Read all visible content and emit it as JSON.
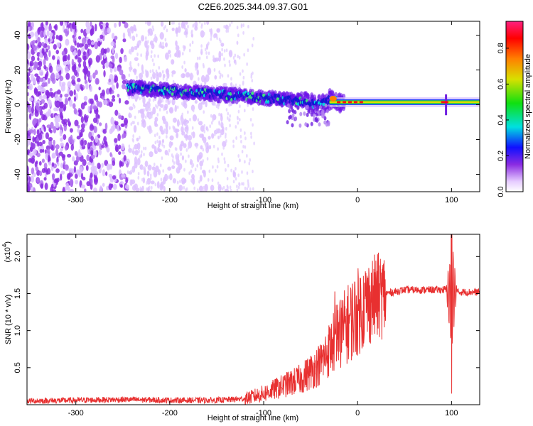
{
  "title": "C2E6.2025.344.09.37.G01",
  "chart_data": [
    {
      "type": "heatmap",
      "name": "spectrogram",
      "xlabel": "Height of straight line (km)",
      "ylabel": "Frequency (Hz)",
      "xlim": [
        -352,
        130
      ],
      "ylim": [
        -50,
        48
      ],
      "xticks": [
        -300,
        -200,
        -100,
        0,
        100
      ],
      "yticks": [
        -40,
        -20,
        0,
        20,
        40
      ],
      "xtick_labels": [
        "-300",
        "-200",
        "-100",
        "0",
        "100"
      ],
      "ytick_labels": [
        "-40",
        "-20",
        "0",
        "20",
        "40"
      ],
      "ridge": {
        "description_points_x": [
          -245,
          -200,
          -150,
          -100,
          -60,
          -40,
          -30,
          -20,
          0,
          50,
          100,
          130
        ],
        "description_points_y": [
          10,
          8,
          6,
          4,
          2,
          0,
          3,
          1.5,
          1.5,
          1.5,
          1.5,
          1.5
        ]
      },
      "colorbar": {
        "label": "Normalized spectral amplitude",
        "range": [
          0.0,
          0.95
        ],
        "ticks": [
          0.0,
          0.2,
          0.4,
          0.6,
          0.8
        ],
        "tick_labels": [
          "0.0",
          "0.2",
          "0.4",
          "0.6",
          "0.8"
        ]
      }
    },
    {
      "type": "line",
      "name": "snr",
      "xlabel": "Height of straight line (km)",
      "ylabel": "SNR (10 * v/v)",
      "scale_label": "(x10",
      "scale_exp": "4",
      "scale_close": ")",
      "xlim": [
        -352,
        130
      ],
      "ylim": [
        0,
        2.3
      ],
      "xticks": [
        -300,
        -200,
        -100,
        0,
        100
      ],
      "yticks": [
        0.5,
        1.0,
        1.5,
        2.0
      ],
      "xtick_labels": [
        "-300",
        "-200",
        "-100",
        "0",
        "100"
      ],
      "ytick_labels": [
        "0.5",
        "1.0",
        "1.5",
        "2.0"
      ],
      "color": "#e83030",
      "envelope_x": [
        -352,
        -300,
        -250,
        -200,
        -150,
        -120,
        -100,
        -80,
        -60,
        -40,
        -30,
        -20,
        -10,
        0,
        10,
        20,
        30,
        50,
        80,
        90,
        95,
        100,
        103,
        110,
        130
      ],
      "envelope_y": [
        0.05,
        0.06,
        0.07,
        0.06,
        0.06,
        0.08,
        0.15,
        0.25,
        0.35,
        0.55,
        0.75,
        0.95,
        1.1,
        1.25,
        1.38,
        1.45,
        1.5,
        1.55,
        1.55,
        1.55,
        1.56,
        1.55,
        1.52,
        1.52,
        1.52
      ],
      "spike": {
        "x": 100,
        "max": 2.3,
        "min": 0.15
      }
    }
  ]
}
